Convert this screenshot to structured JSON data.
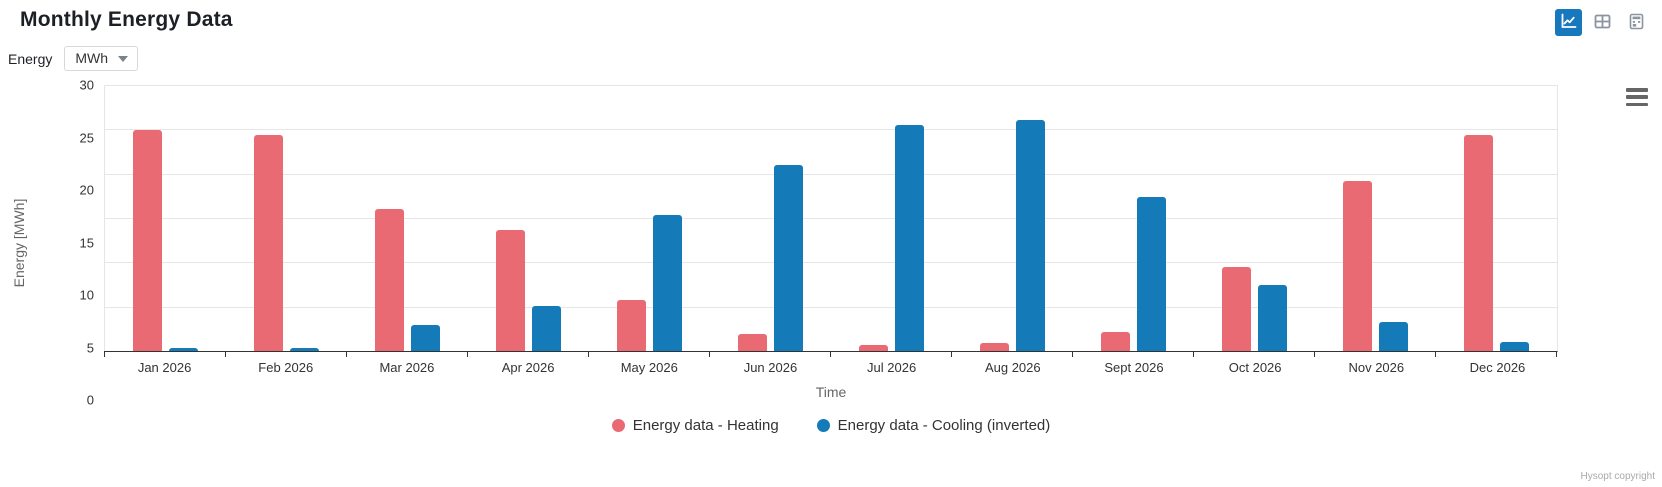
{
  "header": {
    "title": "Monthly Energy Data",
    "view_buttons": [
      {
        "name": "chart-view-button",
        "icon": "line-chart-icon",
        "active": true
      },
      {
        "name": "table-view-button",
        "icon": "table-icon",
        "active": false
      },
      {
        "name": "calculator-view-button",
        "icon": "calculator-icon",
        "active": false
      }
    ]
  },
  "controls": {
    "energy_label": "Energy",
    "unit_value": "MWh"
  },
  "chart_data": {
    "type": "bar",
    "title": "",
    "categories": [
      "Jan 2026",
      "Feb 2026",
      "Mar 2026",
      "Apr 2026",
      "May 2026",
      "Jun 2026",
      "Jul 2026",
      "Aug 2026",
      "Sept 2026",
      "Oct 2026",
      "Nov 2026",
      "Dec 2026"
    ],
    "series": [
      {
        "name": "Energy data - Heating",
        "color": "#E96A72",
        "values": [
          24.9,
          24.4,
          16.0,
          13.6,
          5.7,
          1.9,
          0.7,
          0.9,
          2.2,
          9.5,
          19.2,
          24.4
        ]
      },
      {
        "name": "Energy data - Cooling (inverted)",
        "color": "#147AB8",
        "values": [
          0.3,
          0.3,
          2.9,
          5.1,
          15.3,
          21.0,
          25.5,
          26.0,
          17.4,
          7.4,
          3.3,
          1.0
        ]
      }
    ],
    "xlabel": "Time",
    "ylabel": "Energy [MWh]",
    "ylim": [
      0,
      30
    ],
    "yticks": [
      0,
      5,
      10,
      15,
      20,
      25,
      30
    ],
    "grid": true,
    "legend_position": "bottom"
  },
  "footer": {
    "copyright": "Hysopt copyright"
  }
}
